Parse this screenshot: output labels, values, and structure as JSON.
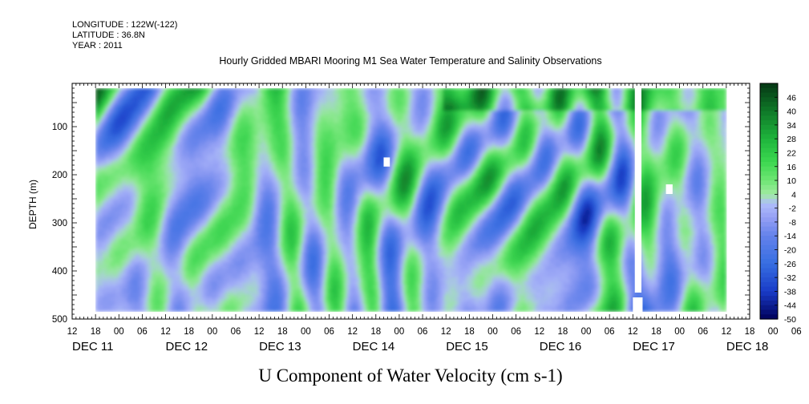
{
  "header": {
    "longitude": "LONGITUDE : 122W(-122)",
    "latitude": "LATITUDE : 36.8N",
    "year": "YEAR : 2011"
  },
  "chart_data": {
    "type": "heatmap",
    "title": "Hourly Gridded MBARI Mooring M1 Sea Water Temperature and Salinity Observations",
    "xlabel": "U Component of Water Velocity (cm s-1)",
    "ylabel": "DEPTH (m)",
    "x_hour_ticks": [
      "12",
      "18",
      "00",
      "06",
      "12",
      "18",
      "00",
      "06",
      "12",
      "18",
      "00",
      "06",
      "12",
      "18",
      "00",
      "06",
      "12",
      "18",
      "00",
      "06",
      "12",
      "18",
      "00",
      "06",
      "12",
      "18",
      "00",
      "06",
      "12",
      "18",
      "00",
      "06"
    ],
    "x_day_ticks": [
      "DEC 11",
      "DEC 12",
      "DEC 13",
      "DEC 14",
      "DEC 15",
      "DEC 16",
      "DEC 17",
      "DEC 18"
    ],
    "x_hour_range": [
      12,
      186
    ],
    "y_ticks": [
      100,
      200,
      300,
      400,
      500
    ],
    "ylim": [
      500,
      10
    ],
    "data_depth_range": [
      20,
      485
    ],
    "data_time_range_hours": [
      18,
      180
    ],
    "colorbar_labels": [
      "46",
      "40",
      "34",
      "28",
      "22",
      "16",
      "10",
      "4",
      "-2",
      "-8",
      "-14",
      "-20",
      "-26",
      "-32",
      "-38",
      "-44",
      "-50"
    ],
    "colorbar_range": [
      -50,
      52
    ],
    "missing_data": [
      {
        "t0": 156.5,
        "t1": 158.2,
        "d0": 12,
        "d1": 445
      },
      {
        "t0": 156.0,
        "t1": 158.5,
        "d0": 455,
        "d1": 485
      },
      {
        "t0": 92.0,
        "t1": 93.6,
        "d0": 164,
        "d1": 183
      },
      {
        "t0": 164.5,
        "t1": 166.2,
        "d0": 220,
        "d1": 240
      }
    ]
  }
}
